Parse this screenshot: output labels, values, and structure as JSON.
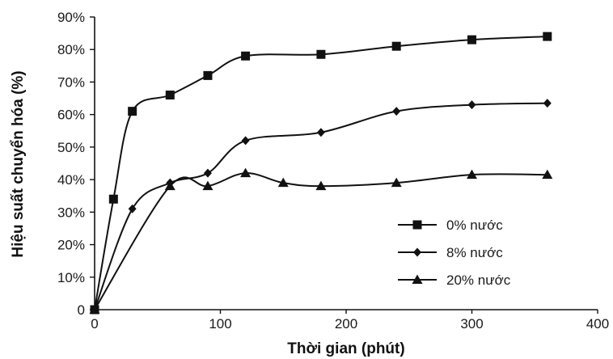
{
  "chart_data": {
    "type": "line",
    "title": "",
    "xlabel": "Thời gian (phút)",
    "ylabel": "Hiệu suất chuyển hóa (%)",
    "xlim": [
      0,
      400
    ],
    "ylim": [
      0,
      90
    ],
    "x_ticks": [
      0,
      100,
      200,
      300,
      400
    ],
    "x_tick_labels": [
      "0",
      "100",
      "200",
      "300",
      "400"
    ],
    "y_ticks": [
      0,
      10,
      20,
      30,
      40,
      50,
      60,
      70,
      80,
      90
    ],
    "y_tick_labels": [
      "0",
      "10%",
      "20%",
      "30%",
      "40%",
      "50%",
      "60%",
      "70%",
      "80%",
      "90%"
    ],
    "grid": false,
    "legend_position": "lower-right",
    "series": [
      {
        "name": "0% nước",
        "marker": "square",
        "x": [
          0,
          15,
          30,
          60,
          90,
          120,
          180,
          240,
          300,
          360
        ],
        "y": [
          0,
          34,
          61,
          66,
          72,
          78,
          78.5,
          81,
          83,
          84
        ]
      },
      {
        "name": "8% nước",
        "marker": "diamond",
        "x": [
          0,
          30,
          60,
          90,
          120,
          180,
          240,
          300,
          360
        ],
        "y": [
          0,
          31,
          39,
          42,
          52,
          54.5,
          61,
          63,
          63.5
        ]
      },
      {
        "name": "20% nước",
        "marker": "triangle",
        "x": [
          0,
          60,
          90,
          120,
          150,
          180,
          240,
          300,
          360
        ],
        "y": [
          0,
          38,
          38,
          42,
          39,
          38,
          39,
          41.5,
          41.5
        ]
      }
    ]
  }
}
